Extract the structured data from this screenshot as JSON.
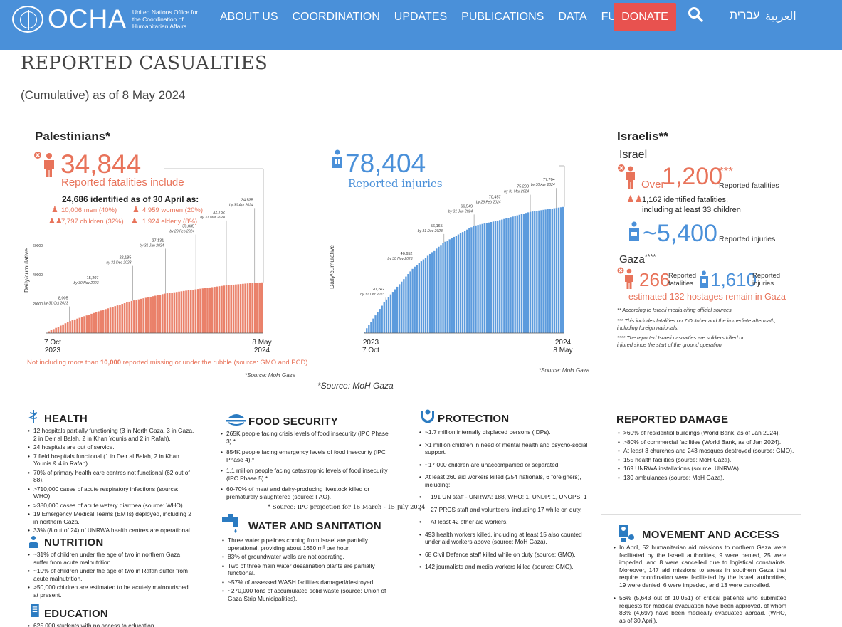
{
  "header": {
    "logo_word": "OCHA",
    "logo_sub": "United Nations Office for the Coordination of Humanitarian Affairs",
    "nav": [
      "ABOUT US",
      "COORDINATION",
      "UPDATES",
      "PUBLICATIONS",
      "DATA",
      "FUNDING"
    ],
    "donate": "DONATE",
    "lang_he": "עברית",
    "lang_ar": "العربية",
    "colors": {
      "bar": "#4a90d9",
      "donate": "#e8524f"
    }
  },
  "page": {
    "title": "REPORTED CASUALTIES",
    "subtitle": "(Cumulative) as of 8 May 2024"
  },
  "palestinians": {
    "heading": "Palestinians*",
    "fatalities": "34,844",
    "fatalities_label": "Reported fatalities include",
    "identified": "24,686 identified as of 30 April as:",
    "men": "10,006 men (40%)",
    "women": "4,959 women (20%)",
    "children": "7,797 children (32%)",
    "elderly": "1,924 elderly (8%)",
    "injuries": "78,404",
    "injuries_label": "Reported injuries",
    "missing_note_pre": "Not including more than ",
    "missing_note_bold": "10,000",
    "missing_note_post": " reported missing or under the rubble (source: GMO and PCD)",
    "source_small": "*Source: MoH Gaza",
    "source_small2": "*Source: MoH Gaza",
    "source_main": "*Source: MoH Gaza"
  },
  "chart_data": [
    {
      "type": "bar",
      "title": "Reported fatalities (cumulative)",
      "ylabel": "Daily/cumulative",
      "ylim": [
        0,
        65000
      ],
      "yticks": [
        "60000",
        "40000",
        "20000"
      ],
      "x_start": [
        "7 Oct",
        "2023"
      ],
      "x_end": [
        "8 May",
        "2024"
      ],
      "annotations": [
        {
          "value": "8,005",
          "date": "by 31 Oct 2023",
          "y": 8005,
          "t": 0.11
        },
        {
          "value": "15,207",
          "date": "by 30 Nov 2023",
          "y": 15207,
          "t": 0.25
        },
        {
          "value": "22,185",
          "date": "by 31 Dec 2023",
          "y": 22185,
          "t": 0.4
        },
        {
          "value": "27,131",
          "date": "by 31 Jan 2024",
          "y": 27131,
          "t": 0.55
        },
        {
          "value": "30,035",
          "date": "by 29 Feb 2024",
          "y": 30035,
          "t": 0.69
        },
        {
          "value": "32,782",
          "date": "by 31 Mar 2024",
          "y": 32782,
          "t": 0.83
        },
        {
          "value": "34,535",
          "date": "by 30 Apr 2024",
          "y": 34535,
          "t": 0.96
        }
      ],
      "final": 34844,
      "color": "#e8735a"
    },
    {
      "type": "bar",
      "title": "Reported injuries (cumulative)",
      "ylabel": "Daily/cumulative",
      "ylim": [
        0,
        80000
      ],
      "x_start": [
        "2023",
        "7 Oct"
      ],
      "x_end": [
        "2024",
        "8 May"
      ],
      "annotations": [
        {
          "value": "20,242",
          "date": "by 31 Oct 2023",
          "y": 20242,
          "t": 0.11
        },
        {
          "value": "40,652",
          "date": "by 30 Nov 2023",
          "y": 40652,
          "t": 0.25
        },
        {
          "value": "56,165",
          "date": "by 31 Dec 2023",
          "y": 56165,
          "t": 0.4
        },
        {
          "value": "66,549",
          "date": "by 31 Jan 2024",
          "y": 66549,
          "t": 0.55
        },
        {
          "value": "70,457",
          "date": "by 29 Feb 2024",
          "y": 70457,
          "t": 0.69
        },
        {
          "value": "75,298",
          "date": "by 31 Mar 2024",
          "y": 75298,
          "t": 0.83
        },
        {
          "value": "77,704",
          "date": "by 30 Apr 2024",
          "y": 77704,
          "t": 0.96
        }
      ],
      "final": 78404,
      "color": "#4a90d9"
    }
  ],
  "israelis": {
    "heading": "Israelis**",
    "israel_label": "Israel",
    "over": "Over",
    "fatalities": "1,200",
    "stars": "***",
    "fatalities_label": "Reported fatalities",
    "identified_1": "1,162 identified fatalities,",
    "identified_2": "including at least 33 children",
    "injuries": "~5,400",
    "injuries_label": "Reported injuries",
    "gaza_label": "Gaza",
    "gaza_stars": "****",
    "gaza_fatalities": "266",
    "gaza_fat_label_1": "Reported",
    "gaza_fat_label_2": "fatalities",
    "gaza_injuries": "1,610",
    "gaza_inj_label_1": "Reported",
    "gaza_inj_label_2": "injuries",
    "hostages": "estimated 132 hostages remain in Gaza",
    "note_1": "** According to Israeli media citing official sources",
    "note_2": "*** This includes fatalities on 7 October and the immediate aftermath, including foreign nationals.",
    "note_3": "**** The reported Israeli casualties are soldiers killed or injured since the start of the ground operation."
  },
  "health": {
    "title": "HEALTH",
    "items": [
      "12 hospitals partially functioning (3 in North Gaza, 3 in Gaza, 2 in Deir al Balah, 2 in Khan Younis and 2 in Rafah).",
      "24 hospitals are out of service.",
      "7 field hospitals functional (1 in Deir al Balah, 2 in Khan Younis & 4 in Rafah).",
      "70% of primary health care centres not functional (62 out of 88).",
      ">710,000 cases of acute respiratory infections (source: WHO).",
      ">380,000 cases of acute watery diarrhea (source: WHO).",
      "19 Emergency Medical Teams (EMTs) deployed, including 2 in northern Gaza.",
      "33% (8 out of 24) of UNRWA health centres are operational."
    ]
  },
  "nutrition": {
    "title": "NUTRITION",
    "items": [
      "~31% of children under the age of two in northern Gaza suffer from acute malnutrition.",
      "~10% of children under the age of two in Rafah suffer from acute malnutrition.",
      ">50,000 children are estimated to be acutely malnourished at present."
    ]
  },
  "education": {
    "title": "EDUCATION",
    "items": [
      "625,000 students with no access to education."
    ]
  },
  "food": {
    "title": "FOOD SECURITY",
    "items": [
      "265K people facing crisis levels of food insecurity (IPC Phase 3).*",
      "854K people facing emergency levels of food insecurity (IPC Phase 4).*",
      "1.1 million people facing catastrophic levels of food insecurity (IPC Phase 5).*",
      "60-70% of meat and dairy-producing livestock killed or prematurely slaughtered (source: FAO)."
    ],
    "source": "* Source: IPC projection for 16 March - 15 July 2024"
  },
  "water": {
    "title": "WATER AND SANITATION",
    "items": [
      "Three water pipelines coming from Israel are partially operational, providing about 1650 m³ per hour.",
      "83% of groundwater wells are not operating.",
      "Two of three main water desalination plants are partially functional.",
      "~57% of assessed WASH facilities damaged/destroyed.",
      "~270,000 tons of accumulated solid waste (source: Union of Gaza Strip Municipalities)."
    ]
  },
  "protection": {
    "title": "PROTECTION",
    "items": [
      "~1.7 million internally displaced persons (IDPs).",
      ">1 million children in need of mental health and psycho-social support.",
      "~17,000 children are unaccompanied or separated.",
      "At least 260 aid workers killed (254 nationals, 6 foreigners), including:",
      "191 UN staff - UNRWA: 188, WHO: 1, UNDP: 1, UNOPS: 1",
      "27 PRCS staff and volunteers, including 17 while on duty.",
      "At least 42 other aid workers.",
      "493 health workers killed, including at least 15 also counted under aid workers above (source: MoH Gaza).",
      "68 Civil Defence staff killed while on duty (source: GMO).",
      "142 journalists and media workers killed (source: GMO)."
    ]
  },
  "damage": {
    "title": "REPORTED DAMAGE",
    "items": [
      ">60% of residential buildings (World Bank, as of Jan 2024).",
      ">80% of commercial facilities (World Bank, as of Jan 2024).",
      "At least 3 churches and 243 mosques destroyed (source: GMO).",
      "155 health facilities (source: MoH Gaza).",
      "169 UNRWA installations (source: UNRWA).",
      "130 ambulances (source: MoH Gaza)."
    ]
  },
  "movement": {
    "title": "MOVEMENT AND ACCESS",
    "items": [
      "In April, 52 humanitarian aid missions to northern Gaza were facilitated by the Israeli authorities, 9 were denied, 25 were impeded, and 8 were cancelled due to logistical constraints. Moreover, 147 aid missions to areas in southern Gaza that require coordination were facilitated by the Israeli authorities, 19 were denied, 6 were impeded, and 13 were cancelled.",
      "56% (5,643 out of 10,051) of critical patients who submitted requests for medical evacuation have been approved, of whom 83% (4,697) have been medically evacuated abroad. (WHO, as of 30 April)."
    ]
  }
}
